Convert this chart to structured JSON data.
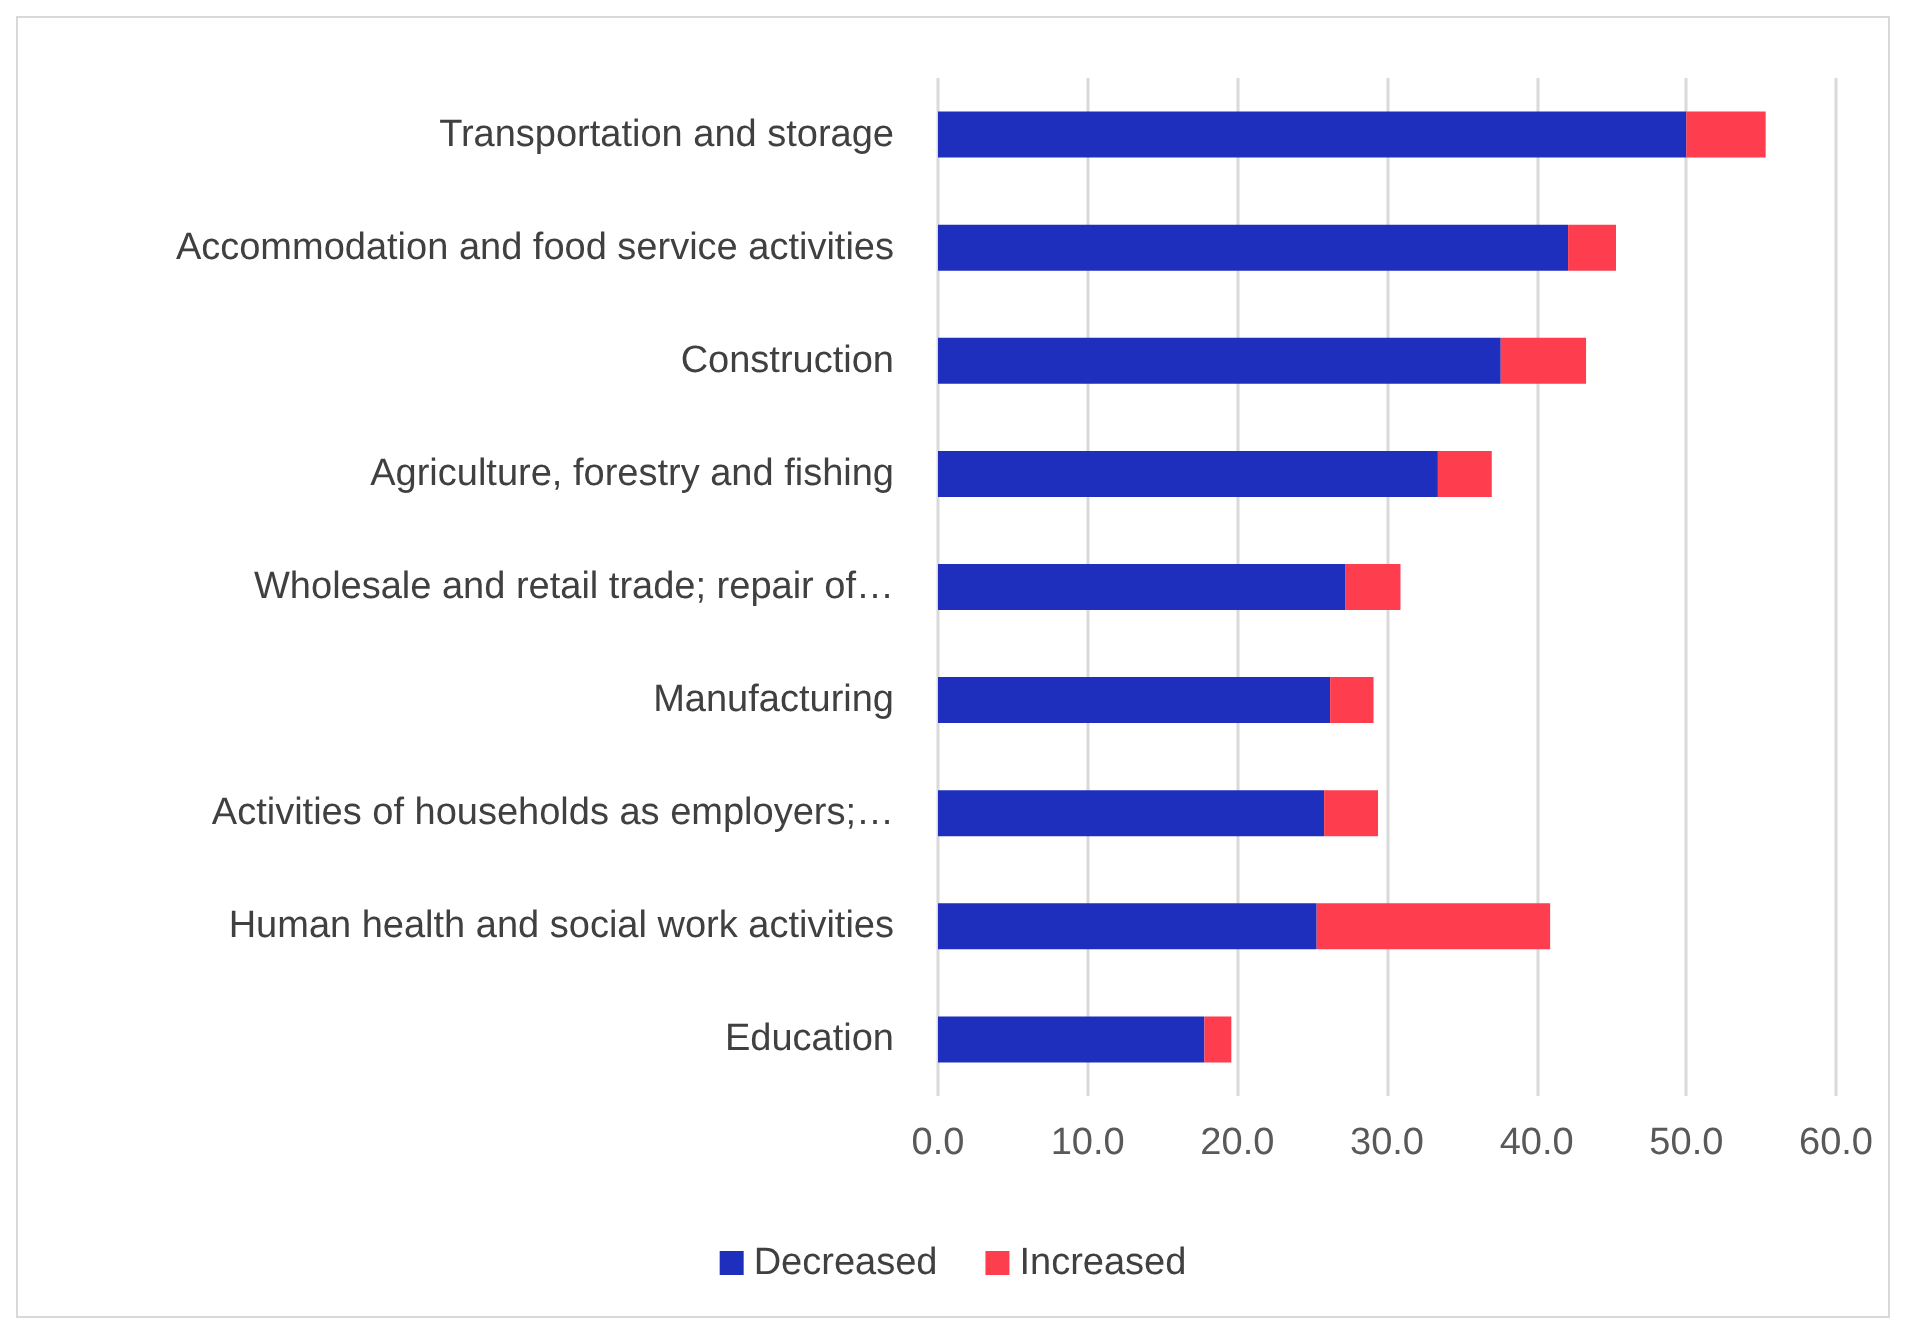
{
  "chart_data": {
    "type": "bar",
    "orientation": "horizontal",
    "stacked": true,
    "categories": [
      "Transportation and storage",
      "Accommodation and food service activities",
      "Construction",
      "Agriculture, forestry and fishing",
      "Wholesale and retail trade; repair of…",
      "Manufacturing",
      "Activities of households as employers;…",
      "Human health and social work activities",
      "Education"
    ],
    "series": [
      {
        "name": "Decreased",
        "color": "#1f2fbd",
        "values": [
          50.0,
          42.1,
          37.6,
          33.4,
          27.2,
          26.2,
          25.8,
          25.3,
          17.8
        ]
      },
      {
        "name": "Increased",
        "color": "#fe3d4f",
        "values": [
          5.3,
          3.2,
          5.7,
          3.6,
          3.7,
          2.9,
          3.6,
          15.6,
          1.8
        ]
      }
    ],
    "xlim": [
      0,
      60
    ],
    "xticks": [
      {
        "value": 0,
        "label": "0.0"
      },
      {
        "value": 10,
        "label": "10.0"
      },
      {
        "value": 20,
        "label": "20.0"
      },
      {
        "value": 30,
        "label": "30.0"
      },
      {
        "value": 40,
        "label": "40.0"
      },
      {
        "value": 50,
        "label": "50.0"
      },
      {
        "value": 60,
        "label": "60.0"
      }
    ],
    "grid": "x",
    "legend": "bottom"
  }
}
